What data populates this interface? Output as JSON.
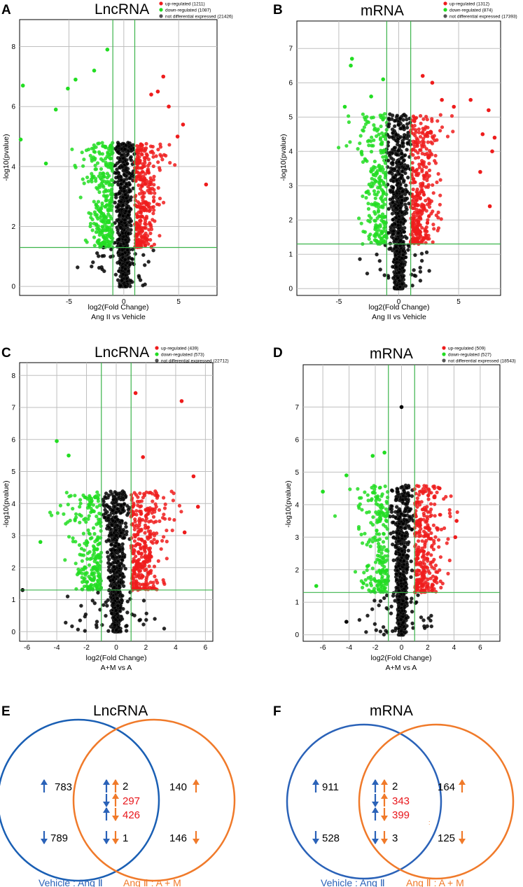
{
  "colors": {
    "up": "#ee1c1c",
    "down": "#22dd22",
    "ns": "#000000",
    "grid": "#bfbfbf",
    "threshold": "#3cb44b",
    "blue": "#2a62b8",
    "orange": "#f07a2a",
    "red_text": "#e8161b"
  },
  "chart_data": [
    {
      "type": "scatter",
      "panel": "A",
      "title": "LncRNA",
      "xlabel": "log2(Fold Change)",
      "subtitle": "Ang II vs Vehicle",
      "ylabel": "-log10(pvalue)",
      "xlim": [
        -9.5,
        8.5
      ],
      "ylim": [
        -0.3,
        8.9
      ],
      "xticks": [
        -5,
        0,
        5
      ],
      "yticks": [
        0,
        2,
        4,
        6,
        8
      ],
      "thresholds": {
        "fold_change": [
          -1,
          1
        ],
        "pvalue": 1.3
      },
      "legend": [
        {
          "label": "up-regulated (1211)",
          "class": "up"
        },
        {
          "label": "down-regulated (1087)",
          "class": "down"
        },
        {
          "label": "not differential expressed (21426)",
          "class": "ns"
        }
      ],
      "n_points": 1400,
      "xsd_core": 0.55,
      "ymax_core": 4.8,
      "highlight_points": [
        [
          -9.2,
          6.7
        ],
        [
          -9.4,
          4.9
        ],
        [
          -4.4,
          6.9
        ],
        [
          -5.1,
          6.6
        ],
        [
          -1.5,
          7.9
        ],
        [
          -2.7,
          7.2
        ],
        [
          -6.2,
          5.9
        ],
        [
          -7.1,
          4.1
        ],
        [
          3.6,
          7.0
        ],
        [
          3.1,
          6.5
        ],
        [
          2.5,
          6.4
        ],
        [
          5.4,
          5.4
        ],
        [
          4.9,
          5.0
        ],
        [
          7.5,
          3.4
        ],
        [
          4.1,
          6.0
        ]
      ]
    },
    {
      "type": "scatter",
      "panel": "B",
      "title": "mRNA",
      "xlabel": "log2(Fold Change)",
      "subtitle": "Ang II vs Vehicle",
      "ylabel": "-log10(pvalue)",
      "xlim": [
        -8.5,
        8.5
      ],
      "ylim": [
        -0.2,
        7.8
      ],
      "xticks": [
        -5,
        0,
        5
      ],
      "yticks": [
        0,
        1,
        2,
        3,
        4,
        5,
        6,
        7
      ],
      "thresholds": {
        "fold_change": [
          -1,
          1
        ],
        "pvalue": 1.3
      },
      "legend": [
        {
          "label": "up-regulated (1312)",
          "class": "up"
        },
        {
          "label": "down-regulated (874)",
          "class": "down"
        },
        {
          "label": "not differential expressed (17393)",
          "class": "ns"
        }
      ],
      "n_points": 1400,
      "xsd_core": 0.55,
      "ymax_core": 5.1,
      "highlight_points": [
        [
          -3.9,
          6.7
        ],
        [
          -4.0,
          6.5
        ],
        [
          -2.3,
          5.6
        ],
        [
          -1.3,
          6.1
        ],
        [
          -4.5,
          5.3
        ],
        [
          2.0,
          6.2
        ],
        [
          2.8,
          6.0
        ],
        [
          3.6,
          5.5
        ],
        [
          4.6,
          5.3
        ],
        [
          6.0,
          5.5
        ],
        [
          7.5,
          5.2
        ],
        [
          8.0,
          4.4
        ],
        [
          7.0,
          4.5
        ],
        [
          7.8,
          4.0
        ],
        [
          6.8,
          3.4
        ],
        [
          7.6,
          2.4
        ]
      ]
    },
    {
      "type": "scatter",
      "panel": "C",
      "title": "LncRNA",
      "xlabel": "log2(Fold Change)",
      "subtitle": "A+M vs A",
      "ylabel": "-log10(pvalue)",
      "xlim": [
        -6.5,
        6.5
      ],
      "ylim": [
        -0.3,
        8.4
      ],
      "xticks": [
        -6,
        -4,
        -2,
        0,
        2,
        4,
        6
      ],
      "yticks": [
        0,
        1,
        2,
        3,
        4,
        5,
        6,
        7,
        8
      ],
      "thresholds": {
        "fold_change": [
          -1,
          1
        ],
        "pvalue": 1.3
      },
      "legend": [
        {
          "label": "up-regulated (439)",
          "class": "up"
        },
        {
          "label": "down-regulated (573)",
          "class": "down"
        },
        {
          "label": "not differential expressed (22712)",
          "class": "ns"
        }
      ],
      "n_points": 1300,
      "xsd_core": 0.4,
      "ymax_core": 4.4,
      "highlight_points": [
        [
          1.3,
          7.45
        ],
        [
          4.4,
          7.2
        ],
        [
          -4.0,
          5.95
        ],
        [
          -3.2,
          5.5
        ],
        [
          1.8,
          5.45
        ],
        [
          5.2,
          4.85
        ],
        [
          5.5,
          3.9
        ],
        [
          4.6,
          3.1
        ],
        [
          -5.1,
          2.8
        ],
        [
          -6.3,
          1.3
        ]
      ]
    },
    {
      "type": "scatter",
      "panel": "D",
      "title": "mRNA",
      "xlabel": "log2(Fold Change)",
      "subtitle": "A+M vs A",
      "ylabel": "-log10(pvalue)",
      "xlim": [
        -7.5,
        7.5
      ],
      "ylim": [
        -0.2,
        8.3
      ],
      "xticks": [
        -6,
        -4,
        -2,
        0,
        2,
        4,
        6
      ],
      "yticks": [
        0,
        1,
        2,
        3,
        4,
        5,
        6,
        7
      ],
      "thresholds": {
        "fold_change": [
          -1,
          1
        ],
        "pvalue": 1.3
      },
      "legend": [
        {
          "label": "up-regulated (509)",
          "class": "up"
        },
        {
          "label": "down-regulated (527)",
          "class": "down"
        },
        {
          "label": "not differential expressed (18543)",
          "class": "ns"
        }
      ],
      "n_points": 1300,
      "xsd_core": 0.4,
      "ymax_core": 4.6,
      "highlight_points": [
        [
          0.0,
          7.0
        ],
        [
          -1.3,
          5.6
        ],
        [
          -2.2,
          5.5
        ],
        [
          -4.2,
          4.9
        ],
        [
          -6.0,
          4.4
        ],
        [
          2.9,
          4.5
        ],
        [
          4.2,
          3.5
        ],
        [
          4.1,
          3.0
        ],
        [
          -6.5,
          1.5
        ],
        [
          -4.2,
          0.4
        ]
      ]
    }
  ],
  "venn": [
    {
      "panel": "E",
      "title": "LncRNA",
      "left_caption": "Vehicle : Ang Ⅱ",
      "right_caption": "Ang Ⅱ : A + M",
      "left_up": "783",
      "left_down": "789",
      "mid": [
        "2",
        "297",
        "426",
        "1"
      ],
      "right_up": "140",
      "right_down": "146"
    },
    {
      "panel": "F",
      "title": "mRNA",
      "left_caption": "Vehicle : Ang Ⅱ",
      "right_caption": "Ang Ⅱ : A + M",
      "left_up": "911",
      "left_down": "528",
      "mid": [
        "2",
        "343",
        "399",
        "3"
      ],
      "right_up": "164",
      "right_down": "125",
      "dot": ":"
    }
  ]
}
